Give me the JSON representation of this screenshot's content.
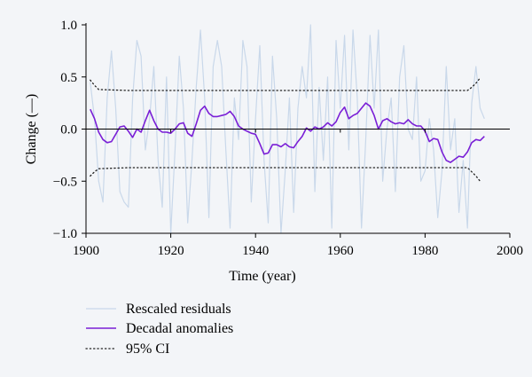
{
  "chart_data": {
    "type": "line",
    "xlabel": "Time (year)",
    "ylabel": "Change (—)",
    "xlim": [
      1900,
      2000
    ],
    "ylim": [
      -1.0,
      1.0
    ],
    "xticks": [
      1900,
      1920,
      1940,
      1960,
      1980,
      2000
    ],
    "xtick_labels": [
      "1900",
      "1920",
      "1940",
      "1960",
      "1980",
      "2000"
    ],
    "yticks": [
      1.0,
      0.5,
      0.0,
      -0.5,
      -1.0
    ],
    "ytick_labels": [
      "1.0",
      "0.5",
      "0.0",
      "−0.5",
      "−1.0"
    ],
    "grid": false,
    "legend_position": "below",
    "series": [
      {
        "name": "Rescaled residuals",
        "style": "thin-line",
        "color": "#c9d8ea",
        "x": [
          1901,
          1902,
          1903,
          1904,
          1905,
          1906,
          1907,
          1908,
          1909,
          1910,
          1911,
          1912,
          1913,
          1914,
          1915,
          1916,
          1917,
          1918,
          1919,
          1920,
          1921,
          1922,
          1923,
          1924,
          1925,
          1926,
          1927,
          1928,
          1929,
          1930,
          1931,
          1932,
          1933,
          1934,
          1935,
          1936,
          1937,
          1938,
          1939,
          1940,
          1941,
          1942,
          1943,
          1944,
          1945,
          1946,
          1947,
          1948,
          1949,
          1950,
          1951,
          1952,
          1953,
          1954,
          1955,
          1956,
          1957,
          1958,
          1959,
          1960,
          1961,
          1962,
          1963,
          1964,
          1965,
          1966,
          1967,
          1968,
          1969,
          1970,
          1971,
          1972,
          1973,
          1974,
          1975,
          1976,
          1977,
          1978,
          1979,
          1980,
          1981,
          1982,
          1983,
          1984,
          1985,
          1986,
          1987,
          1988,
          1989,
          1990,
          1991,
          1992,
          1993,
          1994
        ],
        "values": [
          0.45,
          0.1,
          -0.5,
          -0.7,
          0.3,
          0.75,
          0.2,
          -0.6,
          -0.7,
          -0.75,
          0.3,
          0.85,
          0.7,
          -0.2,
          0.1,
          0.6,
          -0.3,
          -0.75,
          0.5,
          -1.0,
          -0.2,
          0.7,
          0.2,
          -0.9,
          -0.3,
          0.4,
          0.95,
          0.3,
          -0.85,
          0.6,
          0.85,
          0.6,
          -0.2,
          -0.95,
          0.3,
          -0.1,
          0.85,
          0.6,
          -0.7,
          0.1,
          0.8,
          -0.3,
          -0.9,
          0.7,
          0.1,
          -1.0,
          -0.4,
          0.3,
          -0.8,
          0.2,
          0.6,
          0.3,
          1.0,
          -0.6,
          0.4,
          -0.3,
          0.5,
          -0.95,
          0.85,
          0.2,
          0.9,
          -0.2,
          0.95,
          0.3,
          -0.95,
          -0.1,
          0.9,
          0.2,
          0.95,
          -0.5,
          0.0,
          0.3,
          -0.6,
          0.5,
          0.8,
          0.0,
          -0.1,
          0.5,
          -0.5,
          -0.4,
          0.1,
          -0.2,
          -0.85,
          -0.4,
          0.6,
          -0.2,
          0.1,
          -0.8,
          -0.3,
          -0.95,
          0.25,
          0.6,
          0.2,
          0.1
        ]
      },
      {
        "name": "Decadal anomalies",
        "style": "line",
        "color": "#7a1fd6",
        "x": [
          1901,
          1902,
          1903,
          1904,
          1905,
          1906,
          1907,
          1908,
          1909,
          1910,
          1911,
          1912,
          1913,
          1914,
          1915,
          1916,
          1917,
          1918,
          1919,
          1920,
          1921,
          1922,
          1923,
          1924,
          1925,
          1926,
          1927,
          1928,
          1929,
          1930,
          1931,
          1932,
          1933,
          1934,
          1935,
          1936,
          1937,
          1938,
          1939,
          1940,
          1941,
          1942,
          1943,
          1944,
          1945,
          1946,
          1947,
          1948,
          1949,
          1950,
          1951,
          1952,
          1953,
          1954,
          1955,
          1956,
          1957,
          1958,
          1959,
          1960,
          1961,
          1962,
          1963,
          1964,
          1965,
          1966,
          1967,
          1968,
          1969,
          1970,
          1971,
          1972,
          1973,
          1974,
          1975,
          1976,
          1977,
          1978,
          1979,
          1980,
          1981,
          1982,
          1983,
          1984,
          1985,
          1986,
          1987,
          1988,
          1989,
          1990,
          1991,
          1992,
          1993,
          1994
        ],
        "values": [
          0.19,
          0.1,
          -0.03,
          -0.1,
          -0.13,
          -0.12,
          -0.05,
          0.02,
          0.03,
          -0.02,
          -0.08,
          0.0,
          -0.03,
          0.08,
          0.18,
          0.08,
          0.0,
          -0.03,
          -0.03,
          -0.04,
          0.0,
          0.05,
          0.06,
          -0.04,
          -0.07,
          0.05,
          0.18,
          0.22,
          0.15,
          0.12,
          0.12,
          0.13,
          0.14,
          0.17,
          0.12,
          0.03,
          0.0,
          -0.02,
          -0.04,
          -0.05,
          -0.14,
          -0.24,
          -0.23,
          -0.15,
          -0.15,
          -0.17,
          -0.14,
          -0.17,
          -0.18,
          -0.12,
          -0.07,
          0.01,
          -0.02,
          0.02,
          0.0,
          0.02,
          0.06,
          0.03,
          0.07,
          0.16,
          0.21,
          0.1,
          0.13,
          0.15,
          0.2,
          0.25,
          0.22,
          0.13,
          0.0,
          0.08,
          0.1,
          0.07,
          0.05,
          0.06,
          0.05,
          0.09,
          0.05,
          0.03,
          0.03,
          -0.02,
          -0.12,
          -0.09,
          -0.1,
          -0.22,
          -0.3,
          -0.32,
          -0.29,
          -0.26,
          -0.27,
          -0.22,
          -0.13,
          -0.1,
          -0.11,
          -0.07
        ]
      },
      {
        "name": "95% CI",
        "style": "dotted",
        "color": "#222222",
        "x": [
          1901,
          1902,
          1903,
          1910,
          1920,
          1930,
          1940,
          1950,
          1960,
          1970,
          1980,
          1990,
          1991,
          1992,
          1993
        ],
        "upper": [
          0.47,
          0.42,
          0.38,
          0.37,
          0.37,
          0.37,
          0.37,
          0.37,
          0.37,
          0.37,
          0.37,
          0.37,
          0.4,
          0.44,
          0.49
        ],
        "lower": [
          -0.45,
          -0.41,
          -0.38,
          -0.37,
          -0.37,
          -0.37,
          -0.37,
          -0.37,
          -0.37,
          -0.37,
          -0.37,
          -0.37,
          -0.41,
          -0.45,
          -0.5
        ]
      }
    ]
  }
}
